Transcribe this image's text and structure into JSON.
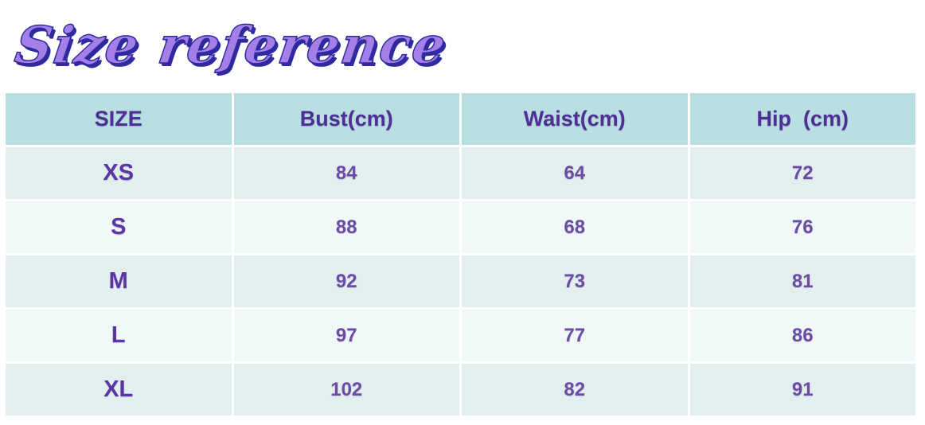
{
  "title": "Size reference",
  "table": {
    "headers": [
      "SIZE",
      "Bust(cm)",
      "Waist(cm)",
      "Hip  (cm)"
    ],
    "rows": [
      [
        "XS",
        "84",
        "64",
        "72"
      ],
      [
        "S",
        "88",
        "68",
        "76"
      ],
      [
        "M",
        "92",
        "73",
        "81"
      ],
      [
        "L",
        "97",
        "77",
        "86"
      ],
      [
        "XL",
        "102",
        "82",
        "91"
      ]
    ]
  },
  "chart_data": {
    "type": "table",
    "title": "Size reference",
    "columns": [
      "SIZE",
      "Bust(cm)",
      "Waist(cm)",
      "Hip (cm)"
    ],
    "categories": [
      "XS",
      "S",
      "M",
      "L",
      "XL"
    ],
    "series": [
      {
        "name": "Bust(cm)",
        "values": [
          84,
          88,
          92,
          97,
          102
        ]
      },
      {
        "name": "Waist(cm)",
        "values": [
          64,
          68,
          73,
          77,
          82
        ]
      },
      {
        "name": "Hip (cm)",
        "values": [
          72,
          76,
          81,
          86,
          91
        ]
      }
    ]
  },
  "colors": {
    "header_bg": "#b9dfe2",
    "row_odd_bg": "#e3efef",
    "row_even_bg": "#f0f8f8",
    "header_text": "#4f2f96",
    "size_text": "#5b35a3",
    "value_text": "#6c4ba5",
    "title_fill": "#a57fe8",
    "title_shadow": "#2f2aa0"
  }
}
